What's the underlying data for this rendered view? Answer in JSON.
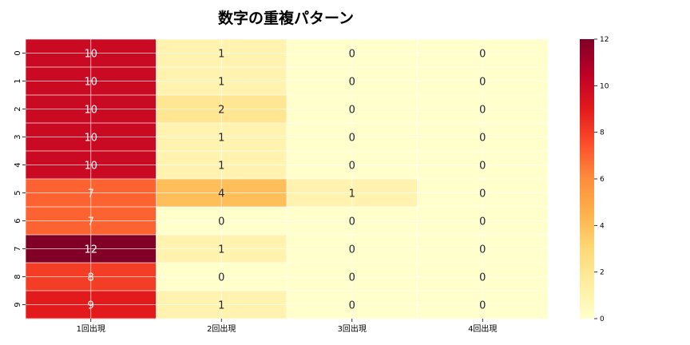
{
  "chart_data": {
    "type": "heatmap",
    "title": "数字の重複パターン",
    "columns": [
      "1回出現",
      "2回出現",
      "3回出現",
      "4回出現"
    ],
    "rows": [
      "0",
      "1",
      "2",
      "3",
      "4",
      "5",
      "6",
      "7",
      "8",
      "9"
    ],
    "values": [
      [
        10,
        1,
        0,
        0
      ],
      [
        10,
        1,
        0,
        0
      ],
      [
        10,
        2,
        0,
        0
      ],
      [
        10,
        1,
        0,
        0
      ],
      [
        10,
        1,
        0,
        0
      ],
      [
        7,
        4,
        1,
        0
      ],
      [
        7,
        0,
        0,
        0
      ],
      [
        12,
        1,
        0,
        0
      ],
      [
        8,
        0,
        0,
        0
      ],
      [
        9,
        1,
        0,
        0
      ]
    ],
    "colormap": "YlOrRd",
    "vmin": 0,
    "vmax": 12,
    "colorbar_ticks": [
      0,
      2,
      4,
      6,
      8,
      10,
      12
    ],
    "annotations": true,
    "grid": true
  }
}
